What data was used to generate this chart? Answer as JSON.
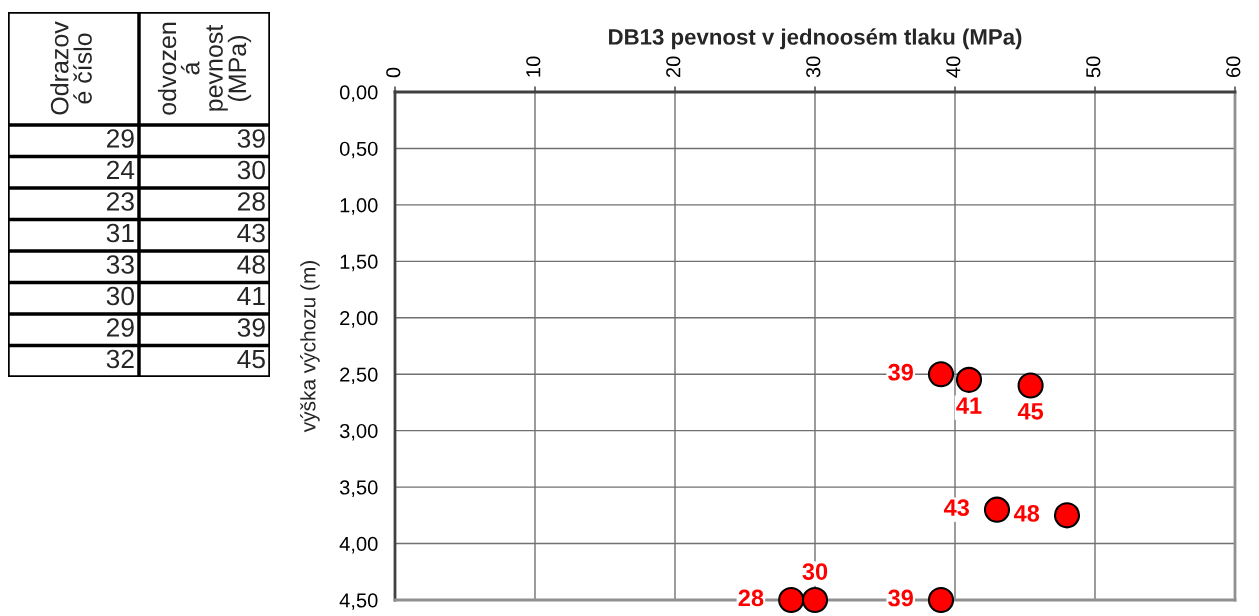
{
  "chart_data": [
    {
      "type": "other",
      "categories": [
        "Odrazov\né číslo",
        "odvozen\ná\npevnost\n(MPa)"
      ],
      "cell_labels": [
        [
          "29",
          "39"
        ],
        [
          "24",
          "30"
        ],
        [
          "23",
          "28"
        ],
        [
          "31",
          "43"
        ],
        [
          "33",
          "48"
        ],
        [
          "30",
          "41"
        ],
        [
          "29",
          "39"
        ],
        [
          "32",
          "45"
        ]
      ]
    },
    {
      "type": "scatter",
      "title": "DB13 pevnost v jednoosém tlaku (MPa)",
      "ylabel": "výška výchozu (m)",
      "xlim": [
        0,
        60
      ],
      "xticks": [
        0,
        10,
        20,
        30,
        40,
        50,
        60
      ],
      "ylim": [
        4.5,
        0
      ],
      "yticks": [
        {
          "value": 0,
          "label": "0,00"
        },
        {
          "value": 0.5,
          "label": "0,50"
        },
        {
          "value": 1,
          "label": "1,00"
        },
        {
          "value": 1.5,
          "label": "1,50"
        },
        {
          "value": 2,
          "label": "2,00"
        },
        {
          "value": 2.5,
          "label": "2,50"
        },
        {
          "value": 3,
          "label": "3,00"
        },
        {
          "value": 3.5,
          "label": "3,50"
        },
        {
          "value": 4,
          "label": "4,00"
        },
        {
          "value": 4.5,
          "label": "4,50"
        }
      ],
      "grid": true,
      "marker": "circle",
      "series": [
        {
          "color": "#ff0000",
          "x": [
            39,
            41,
            45.4,
            43,
            48,
            28.3,
            30,
            39
          ],
          "values": [
            2.5,
            2.55,
            2.6,
            3.7,
            3.75,
            4.5,
            4.5,
            4.5
          ]
        }
      ],
      "annotations": [
        {
          "text": "39",
          "x": 39,
          "y": 2.5
        },
        {
          "text": "41",
          "x": 41,
          "y": 2.55
        },
        {
          "text": "45",
          "x": 45.4,
          "y": 2.6
        },
        {
          "text": "43",
          "x": 43,
          "y": 3.7
        },
        {
          "text": "48",
          "x": 48,
          "y": 3.75
        },
        {
          "text": "28",
          "x": 28.3,
          "y": 4.5
        },
        {
          "text": "30",
          "x": 30,
          "y": 4.5
        },
        {
          "text": "39",
          "x": 39,
          "y": 4.5
        }
      ]
    }
  ]
}
